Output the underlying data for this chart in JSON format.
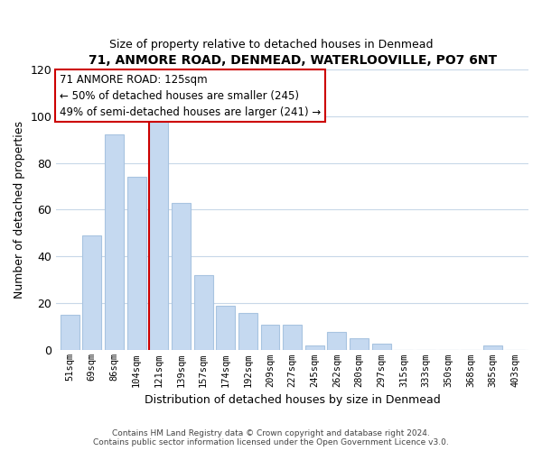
{
  "title": "71, ANMORE ROAD, DENMEAD, WATERLOOVILLE, PO7 6NT",
  "subtitle": "Size of property relative to detached houses in Denmead",
  "xlabel": "Distribution of detached houses by size in Denmead",
  "ylabel": "Number of detached properties",
  "bar_labels": [
    "51sqm",
    "69sqm",
    "86sqm",
    "104sqm",
    "121sqm",
    "139sqm",
    "157sqm",
    "174sqm",
    "192sqm",
    "209sqm",
    "227sqm",
    "245sqm",
    "262sqm",
    "280sqm",
    "297sqm",
    "315sqm",
    "333sqm",
    "350sqm",
    "368sqm",
    "385sqm",
    "403sqm"
  ],
  "bar_values": [
    15,
    49,
    92,
    74,
    100,
    63,
    32,
    19,
    16,
    11,
    11,
    2,
    8,
    5,
    3,
    0,
    0,
    0,
    0,
    2,
    0
  ],
  "highlight_index": 4,
  "bar_color": "#c5d9f0",
  "bar_edge_color": "#a8c4e0",
  "highlight_edge_color": "#cc0000",
  "annotation_title": "71 ANMORE ROAD: 125sqm",
  "annotation_line1": "← 50% of detached houses are smaller (245)",
  "annotation_line2": "49% of semi-detached houses are larger (241) →",
  "annotation_box_color": "#ffffff",
  "annotation_box_edge": "#cc0000",
  "ylim": [
    0,
    120
  ],
  "yticks": [
    0,
    20,
    40,
    60,
    80,
    100,
    120
  ],
  "footer_line1": "Contains HM Land Registry data © Crown copyright and database right 2024.",
  "footer_line2": "Contains public sector information licensed under the Open Government Licence v3.0.",
  "bg_color": "#ffffff",
  "grid_color": "#c8d8e8"
}
